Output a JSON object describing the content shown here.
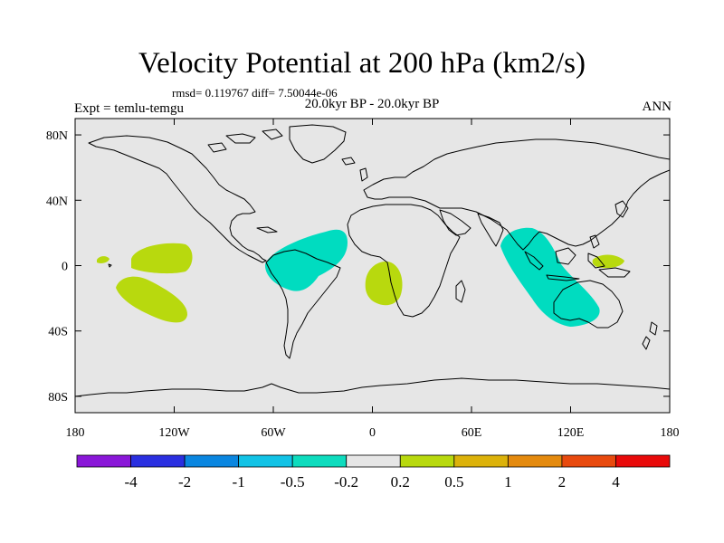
{
  "title": "Velocity Potential at 200 hPa (km2/s)",
  "stats": "rmsd= 0.119767 diff= 7.50044e-06",
  "period": "20.0kyr BP - 20.0kyr BP",
  "experiment": "Expt = temlu-temgu",
  "season": "ANN",
  "colors": {
    "ocean": "#e6e6e6",
    "coast": "#000000",
    "positive_fill": "#b8d90e",
    "negative_fill": "#00dcc0"
  },
  "map": {
    "lon_range": [
      -180,
      180
    ],
    "lat_range": [
      -90,
      90
    ],
    "lon_ticks": [
      {
        "value": -180,
        "label": "180"
      },
      {
        "value": -120,
        "label": "120W"
      },
      {
        "value": -60,
        "label": "60W"
      },
      {
        "value": 0,
        "label": "0"
      },
      {
        "value": 60,
        "label": "60E"
      },
      {
        "value": 120,
        "label": "120E"
      },
      {
        "value": 180,
        "label": "180"
      }
    ],
    "lat_ticks": [
      {
        "value": 80,
        "label": "80N"
      },
      {
        "value": 40,
        "label": "40N"
      },
      {
        "value": 0,
        "label": "0"
      },
      {
        "value": -40,
        "label": "40S"
      },
      {
        "value": -80,
        "label": "80S"
      }
    ]
  },
  "chart_data": {
    "type": "heatmap",
    "title": "Velocity Potential at 200 hPa (km2/s)",
    "units": "km2/s",
    "colorbar": {
      "colors": [
        "#8a17d8",
        "#2a2fe0",
        "#0a86e0",
        "#12c3e6",
        "#0edcbe",
        "#e6e6e6",
        "#b8d90e",
        "#dcb20a",
        "#e48a0e",
        "#e84a0e",
        "#e80a0a"
      ],
      "labels": [
        "-4",
        "-2",
        "-1",
        "-0.5",
        "-0.2",
        "0.2",
        "0.5",
        "1",
        "2",
        "4"
      ]
    },
    "regions": [
      {
        "sign": "negative",
        "center_lon": -45,
        "center_lat": 0,
        "label_range": "-0.5 to -0.2"
      },
      {
        "sign": "negative",
        "center_lon": 100,
        "center_lat": -5,
        "label_range": "-0.5 to -0.2"
      },
      {
        "sign": "positive",
        "center_lon": -125,
        "center_lat": 2,
        "label_range": "0.2 to 0.5"
      },
      {
        "sign": "positive",
        "center_lon": -125,
        "center_lat": -22,
        "label_range": "0.2 to 0.5"
      },
      {
        "sign": "positive",
        "center_lon": 8,
        "center_lat": -10,
        "label_range": "0.2 to 0.5"
      },
      {
        "sign": "positive",
        "center_lon": 150,
        "center_lat": 2,
        "label_range": "0.2 to 0.5"
      },
      {
        "sign": "positive",
        "center_lon": -163,
        "center_lat": 2,
        "label_range": "0.2 to 0.5"
      }
    ]
  }
}
